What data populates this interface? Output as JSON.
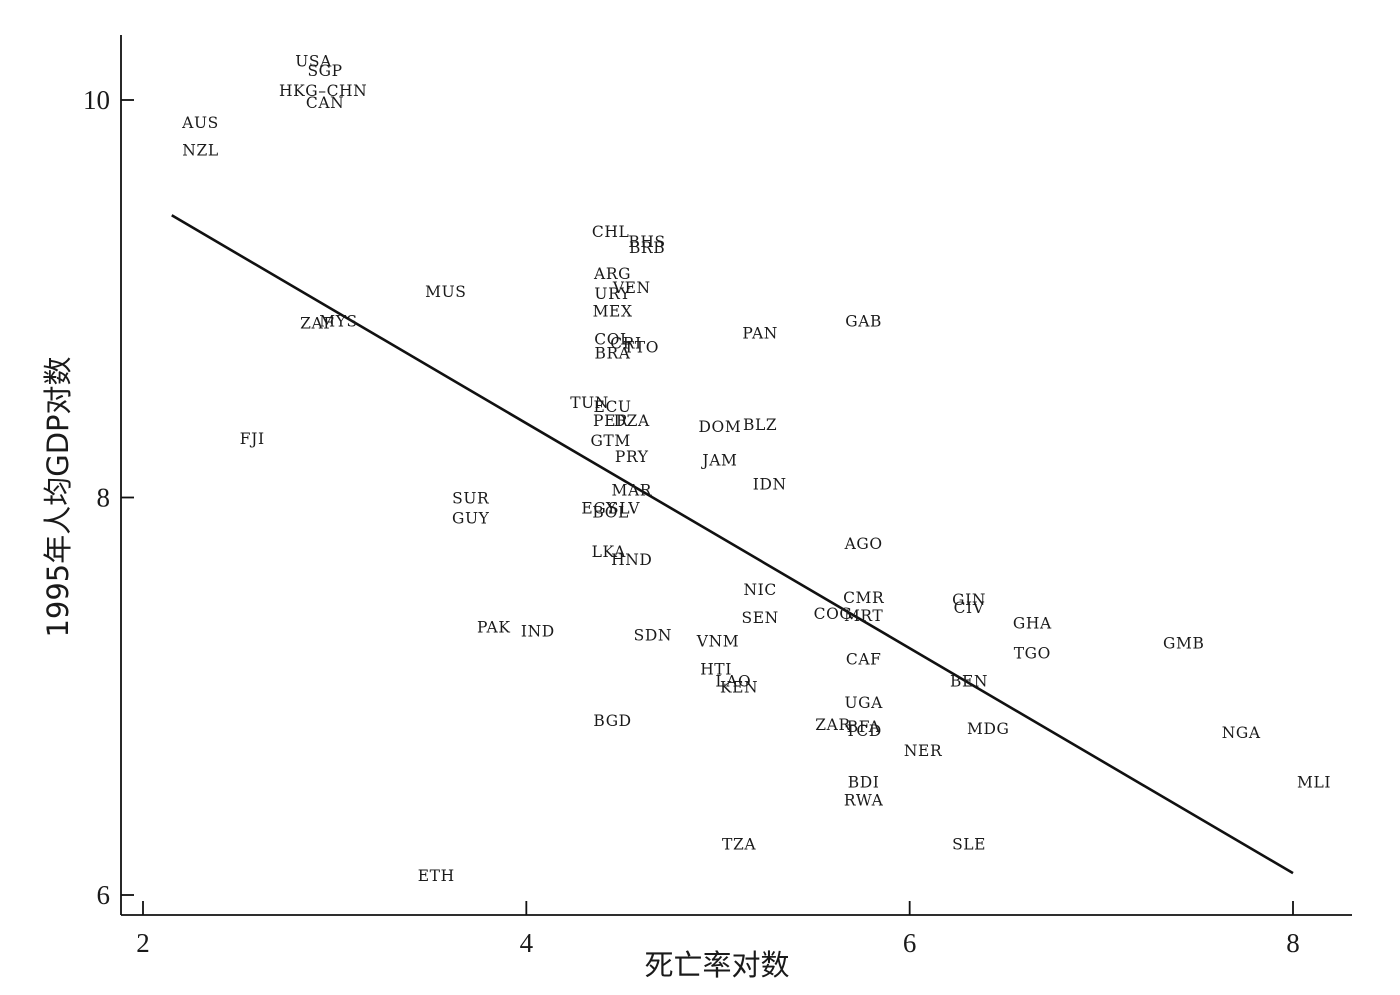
{
  "chart_data": {
    "type": "scatter",
    "title": "",
    "xlabel": "死亡率对数",
    "ylabel": "1995年人均GDP对数",
    "xlim": [
      1.94,
      8.3
    ],
    "ylim": [
      5.9,
      10.3
    ],
    "x_ticks": [
      {
        "value": 2,
        "label": "2"
      },
      {
        "value": 4,
        "label": "4"
      },
      {
        "value": 6,
        "label": "6"
      },
      {
        "value": 8,
        "label": "8"
      }
    ],
    "y_ticks": [
      {
        "value": 6,
        "label": "6"
      },
      {
        "value": 8,
        "label": "8"
      },
      {
        "value": 10,
        "label": "10"
      }
    ],
    "grid": false,
    "legend": "none",
    "fit_line": {
      "x": [
        2.15,
        8.0
      ],
      "y": [
        9.42,
        6.11
      ]
    },
    "points": [
      {
        "label": "USA",
        "x": 2.89,
        "y": 10.2
      },
      {
        "label": "SGP",
        "x": 2.95,
        "y": 10.15
      },
      {
        "label": "HKG–CHN",
        "x": 2.94,
        "y": 10.05
      },
      {
        "label": "CAN",
        "x": 2.95,
        "y": 9.99
      },
      {
        "label": "AUS",
        "x": 2.3,
        "y": 9.89
      },
      {
        "label": "NZL",
        "x": 2.3,
        "y": 9.75
      },
      {
        "label": "MUS",
        "x": 3.58,
        "y": 9.04
      },
      {
        "label": "ZAF",
        "x": 2.91,
        "y": 8.88
      },
      {
        "label": "MYS",
        "x": 3.02,
        "y": 8.89
      },
      {
        "label": "FJI",
        "x": 2.57,
        "y": 8.3
      },
      {
        "label": "SUR",
        "x": 3.71,
        "y": 8.0
      },
      {
        "label": "GUY",
        "x": 3.71,
        "y": 7.9
      },
      {
        "label": "PAK",
        "x": 3.83,
        "y": 7.35
      },
      {
        "label": "IND",
        "x": 4.06,
        "y": 7.33
      },
      {
        "label": "ETH",
        "x": 3.53,
        "y": 6.1
      },
      {
        "label": "CHL",
        "x": 4.44,
        "y": 9.34
      },
      {
        "label": "BHS",
        "x": 4.63,
        "y": 9.29
      },
      {
        "label": "BRB",
        "x": 4.63,
        "y": 9.26
      },
      {
        "label": "ARG",
        "x": 4.45,
        "y": 9.13
      },
      {
        "label": "VEN",
        "x": 4.55,
        "y": 9.06
      },
      {
        "label": "URY",
        "x": 4.45,
        "y": 9.03
      },
      {
        "label": "MEX",
        "x": 4.45,
        "y": 8.94
      },
      {
        "label": "COL",
        "x": 4.45,
        "y": 8.8
      },
      {
        "label": "CRI",
        "x": 4.52,
        "y": 8.78
      },
      {
        "label": "TTO",
        "x": 4.6,
        "y": 8.76
      },
      {
        "label": "BRA",
        "x": 4.45,
        "y": 8.73
      },
      {
        "label": "TUN",
        "x": 4.33,
        "y": 8.48
      },
      {
        "label": "ECU",
        "x": 4.45,
        "y": 8.46
      },
      {
        "label": "PER",
        "x": 4.44,
        "y": 8.39
      },
      {
        "label": "DZA",
        "x": 4.55,
        "y": 8.39
      },
      {
        "label": "GTM",
        "x": 4.44,
        "y": 8.29
      },
      {
        "label": "PRY",
        "x": 4.55,
        "y": 8.21
      },
      {
        "label": "MAR",
        "x": 4.55,
        "y": 8.04
      },
      {
        "label": "EGY",
        "x": 4.38,
        "y": 7.95
      },
      {
        "label": "SLV",
        "x": 4.51,
        "y": 7.95
      },
      {
        "label": "BOL",
        "x": 4.44,
        "y": 7.93
      },
      {
        "label": "LKA",
        "x": 4.43,
        "y": 7.73
      },
      {
        "label": "HND",
        "x": 4.55,
        "y": 7.69
      },
      {
        "label": "SDN",
        "x": 4.66,
        "y": 7.31
      },
      {
        "label": "BGD",
        "x": 4.45,
        "y": 6.88
      },
      {
        "label": "DOM",
        "x": 5.01,
        "y": 8.36
      },
      {
        "label": "BLZ",
        "x": 5.22,
        "y": 8.37
      },
      {
        "label": "JAM",
        "x": 5.01,
        "y": 8.19
      },
      {
        "label": "PAN",
        "x": 5.22,
        "y": 8.83
      },
      {
        "label": "IDN",
        "x": 5.27,
        "y": 8.07
      },
      {
        "label": "NIC",
        "x": 5.22,
        "y": 7.54
      },
      {
        "label": "SEN",
        "x": 5.22,
        "y": 7.4
      },
      {
        "label": "VNM",
        "x": 5.0,
        "y": 7.28
      },
      {
        "label": "HTI",
        "x": 4.99,
        "y": 7.14
      },
      {
        "label": "LAO",
        "x": 5.08,
        "y": 7.08
      },
      {
        "label": "KEN",
        "x": 5.11,
        "y": 7.05
      },
      {
        "label": "TZA",
        "x": 5.11,
        "y": 6.26
      },
      {
        "label": "GAB",
        "x": 5.76,
        "y": 8.89
      },
      {
        "label": "AGO",
        "x": 5.76,
        "y": 7.77
      },
      {
        "label": "CMR",
        "x": 5.76,
        "y": 7.5
      },
      {
        "label": "COG",
        "x": 5.6,
        "y": 7.42
      },
      {
        "label": "MRT",
        "x": 5.76,
        "y": 7.41
      },
      {
        "label": "CAF",
        "x": 5.76,
        "y": 7.19
      },
      {
        "label": "UGA",
        "x": 5.76,
        "y": 6.97
      },
      {
        "label": "ZAR",
        "x": 5.6,
        "y": 6.86
      },
      {
        "label": "BFA",
        "x": 5.76,
        "y": 6.85
      },
      {
        "label": "TCD",
        "x": 5.76,
        "y": 6.83
      },
      {
        "label": "BDI",
        "x": 5.76,
        "y": 6.57
      },
      {
        "label": "RWA",
        "x": 5.76,
        "y": 6.48
      },
      {
        "label": "NER",
        "x": 6.07,
        "y": 6.73
      },
      {
        "label": "GIN",
        "x": 6.31,
        "y": 7.49
      },
      {
        "label": "CIV",
        "x": 6.31,
        "y": 7.45
      },
      {
        "label": "BEN",
        "x": 6.31,
        "y": 7.08
      },
      {
        "label": "MDG",
        "x": 6.41,
        "y": 6.84
      },
      {
        "label": "SLE",
        "x": 6.31,
        "y": 6.26
      },
      {
        "label": "GHA",
        "x": 6.64,
        "y": 7.37
      },
      {
        "label": "TGO",
        "x": 6.64,
        "y": 7.22
      },
      {
        "label": "GMB",
        "x": 7.43,
        "y": 7.27
      },
      {
        "label": "NGA",
        "x": 7.73,
        "y": 6.82
      },
      {
        "label": "MLI",
        "x": 8.11,
        "y": 6.57
      }
    ]
  }
}
